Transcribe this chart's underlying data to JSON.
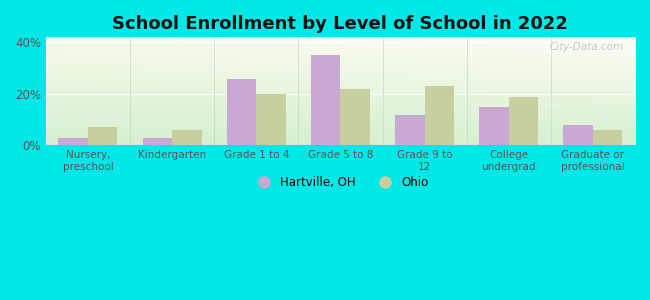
{
  "title": "School Enrollment by Level of School in 2022",
  "categories": [
    "Nursery,\npreschool",
    "Kindergarten",
    "Grade 1 to 4",
    "Grade 5 to 8",
    "Grade 9 to\n12",
    "College\nundergrad",
    "Graduate or\nprofessional"
  ],
  "hartville": [
    3,
    3,
    26,
    35,
    12,
    15,
    8
  ],
  "ohio": [
    7,
    6,
    20,
    22,
    23,
    19,
    6
  ],
  "hartville_color": "#c9a8d4",
  "ohio_color": "#c8cf9e",
  "background_outer": "#00e8e8",
  "ylim": [
    0,
    42
  ],
  "yticks": [
    0,
    20,
    40
  ],
  "ytick_labels": [
    "0%",
    "20%",
    "40%"
  ],
  "bar_width": 0.35,
  "title_fontsize": 13,
  "watermark": "City-Data.com",
  "grad_top_left": "#c8e8c0",
  "grad_top_right": "#f0f8f0",
  "grad_bottom_left": "#c0e8b8",
  "grad_bottom_right": "#e8f8e8"
}
